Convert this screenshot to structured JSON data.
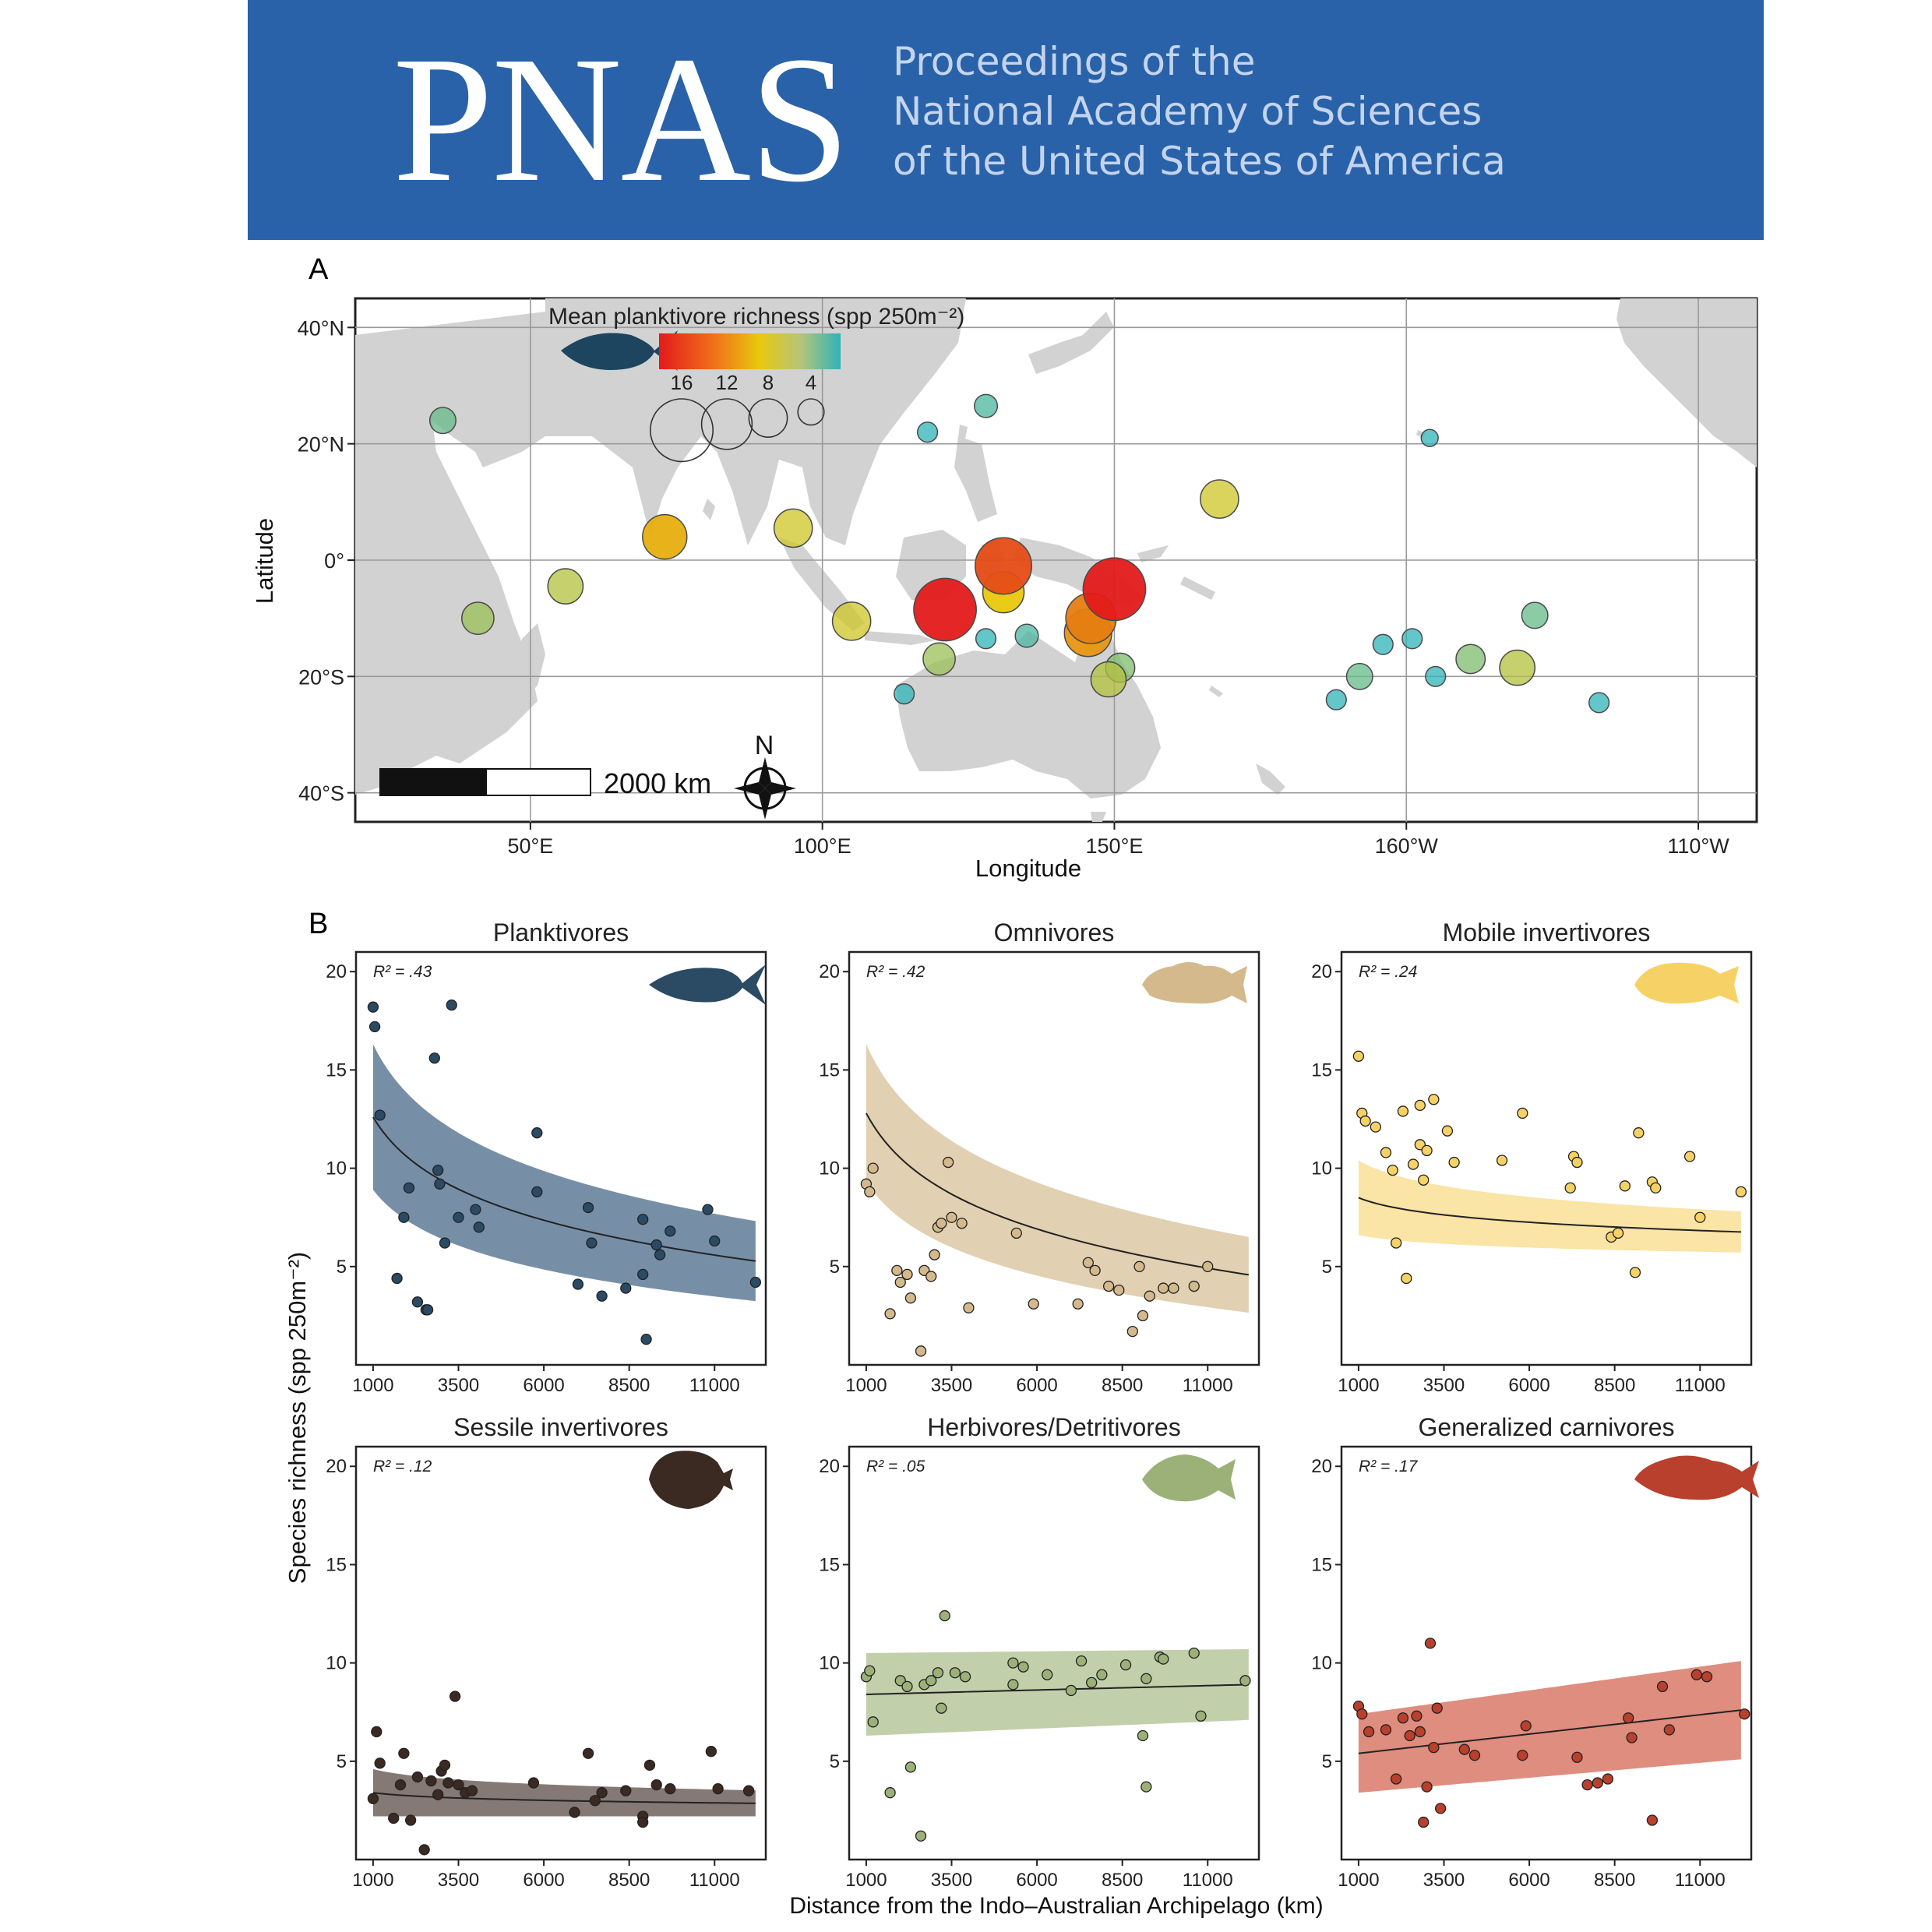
{
  "journal": {
    "logo": "PNAS",
    "title_lines": [
      "Proceedings of the",
      "National Academy of Sciences",
      "of the United States of America"
    ]
  },
  "panel_a": {
    "label": "A",
    "legend_title": "Mean planktivore richness (spp 250m⁻²)",
    "legend_size_labels": [
      "16",
      "12",
      "8",
      "4"
    ],
    "scale_bar": "2000 km",
    "north": "N",
    "lat_ticks": [
      "40°N",
      "20°N",
      "0°",
      "20°S",
      "40°S"
    ],
    "lon_ticks": [
      "50°E",
      "100°E",
      "150°E",
      "160°W",
      "110°W"
    ],
    "xlabel": "Longitude",
    "ylabel": "Latitude"
  },
  "panel_b": {
    "label": "B",
    "ylabel": "Species richness (spp 250m⁻²)",
    "xlabel": "Distance from the Indo–Australian Archipelago (km)",
    "x_ticks": [
      "1000",
      "3500",
      "6000",
      "8500",
      "11000"
    ],
    "y_ticks": [
      "20",
      "15",
      "10",
      "5"
    ]
  },
  "chart_data": [
    {
      "type": "scatter",
      "title": "Mean planktivore richness (spp 250m⁻²)",
      "xlabel": "Longitude",
      "ylabel": "Latitude",
      "note": "map bubble plot; x = degrees east (0-360), y = degrees latitude",
      "xlim": [
        20,
        260
      ],
      "ylim": [
        -45,
        45
      ],
      "colors": {
        "low": "#2fb3b8",
        "mid": "#e8c80c",
        "high": "#e41a1a"
      },
      "points": [
        {
          "x": 35,
          "y": 24,
          "v": 5
        },
        {
          "x": 41,
          "y": -10,
          "v": 7
        },
        {
          "x": 56,
          "y": -4.5,
          "v": 8
        },
        {
          "x": 73,
          "y": 4,
          "v": 11
        },
        {
          "x": 95,
          "y": 5.5,
          "v": 9
        },
        {
          "x": 105,
          "y": -10.5,
          "v": 9
        },
        {
          "x": 114,
          "y": -23,
          "v": 3
        },
        {
          "x": 118,
          "y": 22,
          "v": 3
        },
        {
          "x": 121,
          "y": -8.5,
          "v": 17
        },
        {
          "x": 120,
          "y": -17,
          "v": 7
        },
        {
          "x": 128,
          "y": -13.5,
          "v": 3
        },
        {
          "x": 128,
          "y": 26.5,
          "v": 4
        },
        {
          "x": 131,
          "y": -1,
          "v": 15
        },
        {
          "x": 131,
          "y": -5.5,
          "v": 10
        },
        {
          "x": 135,
          "y": -13,
          "v": 4
        },
        {
          "x": 146,
          "y": -10,
          "v": 13
        },
        {
          "x": 145.5,
          "y": -12.5,
          "v": 12
        },
        {
          "x": 150,
          "y": -5,
          "v": 17
        },
        {
          "x": 149,
          "y": -20.5,
          "v": 8
        },
        {
          "x": 151,
          "y": -18.5,
          "v": 6
        },
        {
          "x": 168,
          "y": 10.5,
          "v": 9
        },
        {
          "x": 188,
          "y": -24,
          "v": 3
        },
        {
          "x": 192,
          "y": -20,
          "v": 5
        },
        {
          "x": 196,
          "y": -14.5,
          "v": 3
        },
        {
          "x": 201,
          "y": -13.5,
          "v": 3
        },
        {
          "x": 204,
          "y": 21,
          "v": 2
        },
        {
          "x": 205,
          "y": -20,
          "v": 3
        },
        {
          "x": 211,
          "y": -17,
          "v": 6
        },
        {
          "x": 219,
          "y": -18.5,
          "v": 8
        },
        {
          "x": 222,
          "y": -9.5,
          "v": 5
        },
        {
          "x": 233,
          "y": -24.5,
          "v": 3
        }
      ]
    },
    {
      "type": "scatter",
      "title": "Planktivores",
      "r2": "R² = .43",
      "xlabel": "Distance from the Indo–Australian Archipelago (km)",
      "ylabel": "Species richness (spp 250m⁻²)",
      "xlim": [
        500,
        12500
      ],
      "ylim": [
        0,
        21
      ],
      "color": "#2b4a64",
      "band": "#5f7b96",
      "fit": {
        "a": 12.6,
        "b": 12.2,
        "ci": 3.7
      },
      "points": [
        [
          1000,
          18.2
        ],
        [
          1050,
          17.2
        ],
        [
          1200,
          12.7
        ],
        [
          1700,
          4.4
        ],
        [
          1900,
          7.5
        ],
        [
          2050,
          9.0
        ],
        [
          2300,
          3.2
        ],
        [
          2550,
          2.8
        ],
        [
          2600,
          2.8
        ],
        [
          2800,
          15.6
        ],
        [
          2900,
          9.9
        ],
        [
          2950,
          9.2
        ],
        [
          3100,
          6.2
        ],
        [
          3300,
          18.3
        ],
        [
          3500,
          7.5
        ],
        [
          4000,
          7.9
        ],
        [
          4100,
          7.0
        ],
        [
          5800,
          11.8
        ],
        [
          5800,
          8.8
        ],
        [
          7000,
          4.1
        ],
        [
          7300,
          8.0
        ],
        [
          7400,
          6.2
        ],
        [
          7700,
          3.5
        ],
        [
          8400,
          3.9
        ],
        [
          8900,
          7.4
        ],
        [
          8900,
          4.6
        ],
        [
          9000,
          1.3
        ],
        [
          9300,
          6.1
        ],
        [
          9400,
          5.6
        ],
        [
          9700,
          6.8
        ],
        [
          10800,
          7.9
        ],
        [
          11000,
          6.3
        ],
        [
          12200,
          4.2
        ]
      ]
    },
    {
      "type": "scatter",
      "title": "Omnivores",
      "r2": "R² = .42",
      "xlabel": "Distance from the Indo–Australian Archipelago (km)",
      "ylabel": "Species richness (spp 250m⁻²)",
      "xlim": [
        500,
        12500
      ],
      "ylim": [
        0,
        21
      ],
      "color": "#d4b98c",
      "band": "#dcc8a4",
      "fit": {
        "a": 12.8,
        "b": 13.7,
        "ci": 3.5
      },
      "points": [
        [
          1000,
          9.2
        ],
        [
          1100,
          8.8
        ],
        [
          1200,
          10.0
        ],
        [
          1700,
          2.6
        ],
        [
          1900,
          4.8
        ],
        [
          2000,
          4.2
        ],
        [
          2200,
          4.6
        ],
        [
          2300,
          3.4
        ],
        [
          2600,
          0.7
        ],
        [
          2700,
          4.8
        ],
        [
          2900,
          4.5
        ],
        [
          3000,
          5.6
        ],
        [
          3100,
          7.0
        ],
        [
          3200,
          7.2
        ],
        [
          3400,
          10.3
        ],
        [
          3500,
          7.5
        ],
        [
          3800,
          7.2
        ],
        [
          4000,
          2.9
        ],
        [
          5400,
          6.7
        ],
        [
          5900,
          3.1
        ],
        [
          7200,
          3.1
        ],
        [
          7500,
          5.2
        ],
        [
          7700,
          4.8
        ],
        [
          8100,
          4.0
        ],
        [
          8400,
          3.8
        ],
        [
          8800,
          1.7
        ],
        [
          9000,
          5.0
        ],
        [
          9100,
          2.5
        ],
        [
          9300,
          3.5
        ],
        [
          9700,
          3.9
        ],
        [
          10000,
          3.9
        ],
        [
          10600,
          4.0
        ],
        [
          11000,
          5.0
        ]
      ]
    },
    {
      "type": "scatter",
      "title": "Mobile invertivores",
      "r2": "R² = .24",
      "xlabel": "Distance from the Indo–Australian Archipelago (km)",
      "ylabel": "Species richness (spp 250m⁻²)",
      "xlim": [
        500,
        12500
      ],
      "ylim": [
        0,
        21
      ],
      "color": "#f6d266",
      "band": "#f9df96",
      "fit": {
        "a": 8.5,
        "b": 2.9,
        "ci": 1.9
      },
      "points": [
        [
          1000,
          15.7
        ],
        [
          1100,
          12.8
        ],
        [
          1200,
          12.4
        ],
        [
          1500,
          12.1
        ],
        [
          1800,
          10.8
        ],
        [
          2000,
          9.9
        ],
        [
          2100,
          6.2
        ],
        [
          2300,
          12.9
        ],
        [
          2400,
          4.4
        ],
        [
          2600,
          10.2
        ],
        [
          2800,
          13.2
        ],
        [
          2800,
          11.2
        ],
        [
          2900,
          9.4
        ],
        [
          3000,
          10.9
        ],
        [
          3200,
          13.5
        ],
        [
          3600,
          11.9
        ],
        [
          3800,
          10.3
        ],
        [
          5200,
          10.4
        ],
        [
          5800,
          12.8
        ],
        [
          7200,
          9.0
        ],
        [
          7300,
          10.6
        ],
        [
          7400,
          10.3
        ],
        [
          8400,
          6.5
        ],
        [
          8600,
          6.7
        ],
        [
          8800,
          9.1
        ],
        [
          9100,
          4.7
        ],
        [
          9200,
          11.8
        ],
        [
          9600,
          9.3
        ],
        [
          9700,
          9.0
        ],
        [
          10700,
          10.6
        ],
        [
          11000,
          7.5
        ],
        [
          12200,
          8.8
        ]
      ]
    },
    {
      "type": "scatter",
      "title": "Sessile invertivores",
      "r2": "R² = .12",
      "xlabel": "Distance from the Indo–Australian Archipelago (km)",
      "ylabel": "Species richness (spp 250m⁻²)",
      "xlim": [
        500,
        12500
      ],
      "ylim": [
        0,
        21
      ],
      "color": "#3b2a22",
      "band": "#6e625c",
      "fit": {
        "a": 3.4,
        "b": 0.9,
        "ci": 1.2
      },
      "points": [
        [
          1000,
          3.1
        ],
        [
          1100,
          6.5
        ],
        [
          1200,
          4.9
        ],
        [
          1600,
          2.1
        ],
        [
          1800,
          3.8
        ],
        [
          1900,
          5.4
        ],
        [
          2100,
          2.0
        ],
        [
          2300,
          4.2
        ],
        [
          2500,
          0.5
        ],
        [
          2700,
          4.0
        ],
        [
          2900,
          3.3
        ],
        [
          3000,
          4.5
        ],
        [
          3100,
          4.8
        ],
        [
          3200,
          3.9
        ],
        [
          3400,
          8.3
        ],
        [
          3500,
          3.8
        ],
        [
          3700,
          3.4
        ],
        [
          3900,
          3.5
        ],
        [
          5700,
          3.9
        ],
        [
          6900,
          2.4
        ],
        [
          7300,
          5.4
        ],
        [
          7500,
          3.0
        ],
        [
          7700,
          3.4
        ],
        [
          8400,
          3.5
        ],
        [
          8900,
          2.2
        ],
        [
          8900,
          1.9
        ],
        [
          9100,
          4.8
        ],
        [
          9300,
          3.8
        ],
        [
          9700,
          3.6
        ],
        [
          10900,
          5.5
        ],
        [
          11100,
          3.6
        ],
        [
          12000,
          3.5
        ]
      ]
    },
    {
      "type": "scatter",
      "title": "Herbivores/Detritivores",
      "r2": "R² = .05",
      "xlabel": "Distance from the Indo–Australian Archipelago (km)",
      "ylabel": "Species richness (spp 250m⁻²)",
      "xlim": [
        500,
        12500
      ],
      "ylim": [
        0,
        21
      ],
      "color": "#9cb178",
      "band": "#b7c79c",
      "fit": {
        "linear": true,
        "y0": 8.4,
        "y1": 8.9,
        "ci0": 2.1,
        "ci1": 1.8
      },
      "points": [
        [
          1000,
          9.3
        ],
        [
          1100,
          9.6
        ],
        [
          1200,
          7.0
        ],
        [
          1700,
          3.4
        ],
        [
          2000,
          9.1
        ],
        [
          2200,
          8.8
        ],
        [
          2300,
          4.7
        ],
        [
          2600,
          1.2
        ],
        [
          2700,
          8.9
        ],
        [
          2900,
          9.1
        ],
        [
          3100,
          9.5
        ],
        [
          3200,
          7.7
        ],
        [
          3300,
          12.4
        ],
        [
          3600,
          9.5
        ],
        [
          3900,
          9.3
        ],
        [
          5300,
          10.0
        ],
        [
          5300,
          8.9
        ],
        [
          5600,
          9.8
        ],
        [
          6300,
          9.4
        ],
        [
          7000,
          8.6
        ],
        [
          7300,
          10.1
        ],
        [
          7600,
          9.0
        ],
        [
          7900,
          9.4
        ],
        [
          8600,
          9.9
        ],
        [
          9100,
          6.3
        ],
        [
          9200,
          3.7
        ],
        [
          9200,
          9.2
        ],
        [
          9600,
          10.3
        ],
        [
          9700,
          10.2
        ],
        [
          10600,
          10.5
        ],
        [
          10800,
          7.3
        ],
        [
          12100,
          9.1
        ]
      ]
    },
    {
      "type": "scatter",
      "title": "Generalized carnivores",
      "r2": "R² = .17",
      "xlabel": "Distance from the Indo–Australian Archipelago (km)",
      "ylabel": "Species richness (spp 250m⁻²)",
      "xlim": [
        500,
        12500
      ],
      "ylim": [
        0,
        21
      ],
      "color": "#b8402c",
      "band": "#d87968",
      "fit": {
        "linear": true,
        "y0": 5.4,
        "y1": 7.6,
        "ci0": 2.0,
        "ci1": 2.5
      },
      "points": [
        [
          1000,
          7.8
        ],
        [
          1100,
          7.4
        ],
        [
          1300,
          6.5
        ],
        [
          1800,
          6.6
        ],
        [
          2100,
          4.1
        ],
        [
          2300,
          7.2
        ],
        [
          2500,
          6.3
        ],
        [
          2700,
          7.3
        ],
        [
          2800,
          6.5
        ],
        [
          2900,
          1.9
        ],
        [
          3000,
          3.7
        ],
        [
          3100,
          11.0
        ],
        [
          3200,
          5.7
        ],
        [
          3300,
          7.7
        ],
        [
          3400,
          2.6
        ],
        [
          4100,
          5.6
        ],
        [
          4400,
          5.3
        ],
        [
          5800,
          5.3
        ],
        [
          5900,
          6.8
        ],
        [
          7400,
          5.2
        ],
        [
          7700,
          3.8
        ],
        [
          8000,
          3.9
        ],
        [
          8300,
          4.1
        ],
        [
          8900,
          7.2
        ],
        [
          9000,
          6.2
        ],
        [
          9600,
          2.0
        ],
        [
          9900,
          8.8
        ],
        [
          10100,
          6.6
        ],
        [
          10900,
          9.4
        ],
        [
          11200,
          9.3
        ],
        [
          12300,
          7.4
        ]
      ]
    }
  ]
}
